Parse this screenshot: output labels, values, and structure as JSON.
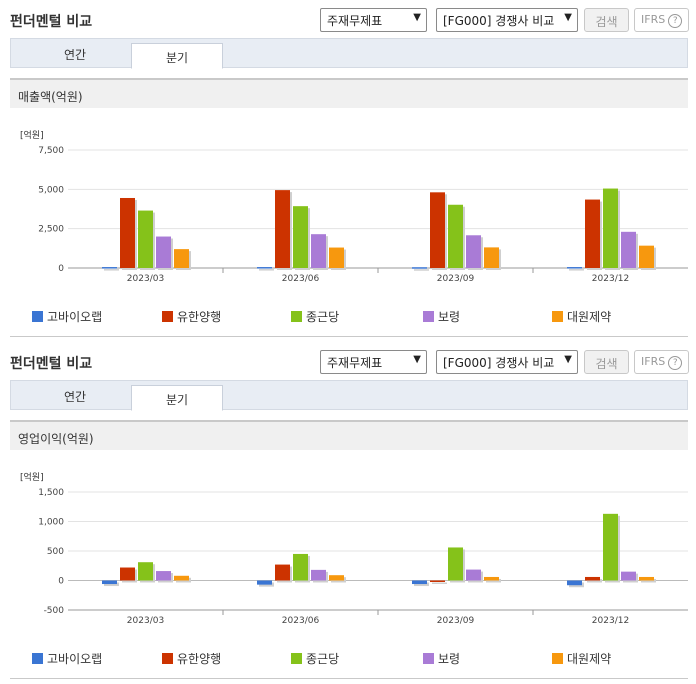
{
  "sections": [
    {
      "title": "펀더멘털 비교",
      "select1": "주재무제표",
      "select2": "[FG000] 경쟁사 비교",
      "search_label": "검색",
      "ifrs_label": "IFRS",
      "tabs": [
        {
          "label": "연간"
        },
        {
          "label": "분기"
        }
      ],
      "band_title": "매출액(억원)"
    },
    {
      "title": "펀더멘털 비교",
      "select1": "주재무제표",
      "select2": "[FG000] 경쟁사 비교",
      "search_label": "검색",
      "ifrs_label": "IFRS",
      "tabs": [
        {
          "label": "연간"
        },
        {
          "label": "분기"
        }
      ],
      "band_title": "영업이익(억원)"
    }
  ],
  "colors": [
    "#3a75d3",
    "#cc3300",
    "#85c21a",
    "#a97bd6",
    "#f7980e"
  ],
  "chart_data": [
    {
      "type": "bar",
      "unit_label": "[억원]",
      "categories": [
        "2023/03",
        "2023/06",
        "2023/09",
        "2023/12"
      ],
      "ylim": [
        0,
        7500
      ],
      "yticks": [
        0,
        2500,
        5000,
        7500
      ],
      "ytick_labels": [
        "0",
        "2,500",
        "5,000",
        "7,500"
      ],
      "series": [
        {
          "name": "고바이오랩",
          "values": [
            60,
            60,
            50,
            60
          ]
        },
        {
          "name": "유한양행",
          "values": [
            4450,
            4950,
            4810,
            4350
          ]
        },
        {
          "name": "종근당",
          "values": [
            3650,
            3930,
            4020,
            5050
          ]
        },
        {
          "name": "보령",
          "values": [
            2000,
            2150,
            2080,
            2300
          ]
        },
        {
          "name": "대원제약",
          "values": [
            1200,
            1300,
            1310,
            1420
          ]
        }
      ]
    },
    {
      "type": "bar",
      "unit_label": "[억원]",
      "categories": [
        "2023/03",
        "2023/06",
        "2023/09",
        "2023/12"
      ],
      "ylim": [
        -500,
        1500
      ],
      "yticks": [
        -500,
        0,
        500,
        1000,
        1500
      ],
      "ytick_labels": [
        "-500",
        "0",
        "500",
        "1,000",
        "1,500"
      ],
      "series": [
        {
          "name": "고바이오랩",
          "values": [
            -60,
            -70,
            -60,
            -80
          ]
        },
        {
          "name": "유한양행",
          "values": [
            220,
            270,
            -20,
            60
          ]
        },
        {
          "name": "종근당",
          "values": [
            310,
            450,
            560,
            1130
          ]
        },
        {
          "name": "보령",
          "values": [
            160,
            180,
            185,
            150
          ]
        },
        {
          "name": "대원제약",
          "values": [
            80,
            90,
            60,
            60
          ]
        }
      ]
    }
  ]
}
